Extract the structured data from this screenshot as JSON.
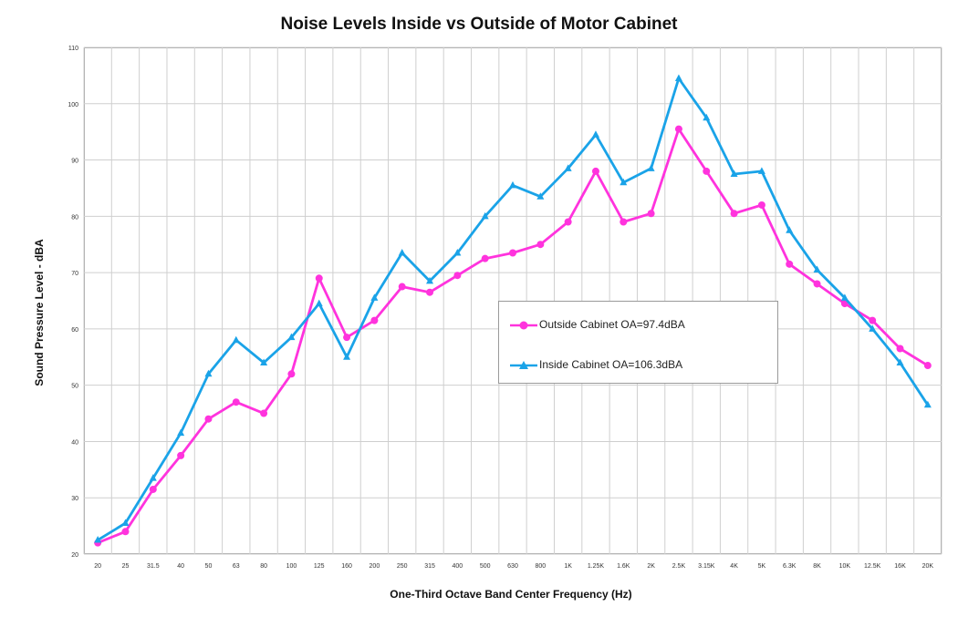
{
  "chart_data": {
    "type": "line",
    "title": "Noise Levels Inside vs Outside of Motor Cabinet",
    "xlabel": "One-Third Octave Band Center Frequency (Hz)",
    "ylabel": "Sound Pressure Level - dBA",
    "ylim": [
      20,
      110
    ],
    "yticks": [
      20,
      30,
      40,
      50,
      60,
      70,
      80,
      90,
      100,
      110
    ],
    "grid": true,
    "legend_position": "center-right",
    "categories": [
      "20",
      "25",
      "31.5",
      "40",
      "50",
      "63",
      "80",
      "100",
      "125",
      "160",
      "200",
      "250",
      "315",
      "400",
      "500",
      "630",
      "800",
      "1K",
      "1.25K",
      "1.6K",
      "2K",
      "2.5K",
      "3.15K",
      "4K",
      "5K",
      "6.3K",
      "8K",
      "10K",
      "12.5K",
      "16K",
      "20K"
    ],
    "series": [
      {
        "name": "Outside Cabinet OA=97.4dBA",
        "color": "#ff33dd",
        "marker": "circle",
        "values": [
          22,
          24,
          31.5,
          37.5,
          44,
          47,
          45,
          52,
          69,
          58.5,
          61.5,
          67.5,
          66.5,
          69.5,
          72.5,
          73.5,
          75,
          79,
          88,
          79,
          80.5,
          95.5,
          88,
          80.5,
          82,
          71.5,
          68,
          64.5,
          61.5,
          56.5,
          53.5
        ]
      },
      {
        "name": "Inside Cabinet OA=106.3dBA",
        "color": "#1aa3e8",
        "marker": "triangle",
        "values": [
          22.5,
          25.5,
          33.5,
          41.5,
          52,
          58,
          54,
          58.5,
          64.5,
          55,
          65.5,
          73.5,
          68.5,
          73.5,
          80,
          85.5,
          83.5,
          88.5,
          94.5,
          86,
          88.5,
          104.5,
          97.5,
          87.5,
          88,
          77.5,
          70.5,
          65.5,
          60,
          54,
          46.5
        ]
      }
    ]
  }
}
